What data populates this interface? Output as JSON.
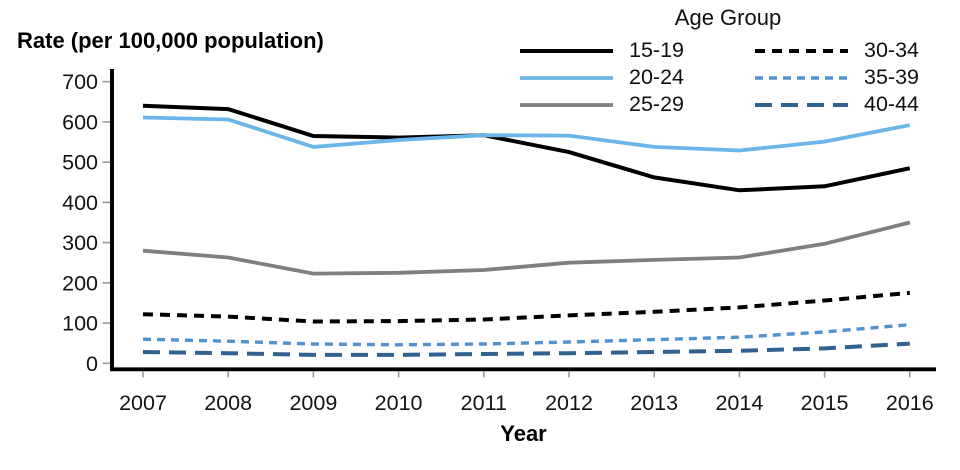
{
  "chart_data": {
    "type": "line",
    "title": "Rate (per 100,000 population)",
    "xlabel": "Year",
    "legend_title": "Age Group",
    "legend_position": "top-right",
    "grid": false,
    "ylim": [
      0,
      700
    ],
    "yticks": [
      0,
      100,
      200,
      300,
      400,
      500,
      600,
      700
    ],
    "x": [
      "2007",
      "2008",
      "2009",
      "2010",
      "2011",
      "2012",
      "2013",
      "2014",
      "2015",
      "2016"
    ],
    "series": [
      {
        "name": "15-19",
        "color": "#000000",
        "dash": "solid",
        "values": [
          640,
          632,
          565,
          561,
          567,
          525,
          462,
          430,
          440,
          485
        ]
      },
      {
        "name": "20-24",
        "color": "#6cb5e8",
        "dash": "solid",
        "values": [
          611,
          606,
          538,
          555,
          567,
          566,
          538,
          529,
          551,
          592
        ]
      },
      {
        "name": "25-29",
        "color": "#7f7f7f",
        "dash": "solid",
        "values": [
          280,
          263,
          223,
          225,
          232,
          250,
          257,
          263,
          297,
          350
        ]
      },
      {
        "name": "30-34",
        "color": "#000000",
        "dash": "dotted",
        "values": [
          122,
          116,
          104,
          105,
          109,
          119,
          128,
          139,
          156,
          175
        ]
      },
      {
        "name": "35-39",
        "color": "#5191ce",
        "dash": "dotted-small",
        "values": [
          60,
          55,
          48,
          46,
          48,
          53,
          59,
          65,
          78,
          96
        ]
      },
      {
        "name": "40-44",
        "color": "#31618f",
        "dash": "long-dash",
        "values": [
          28,
          25,
          21,
          21,
          23,
          25,
          28,
          31,
          37,
          49
        ]
      }
    ]
  }
}
